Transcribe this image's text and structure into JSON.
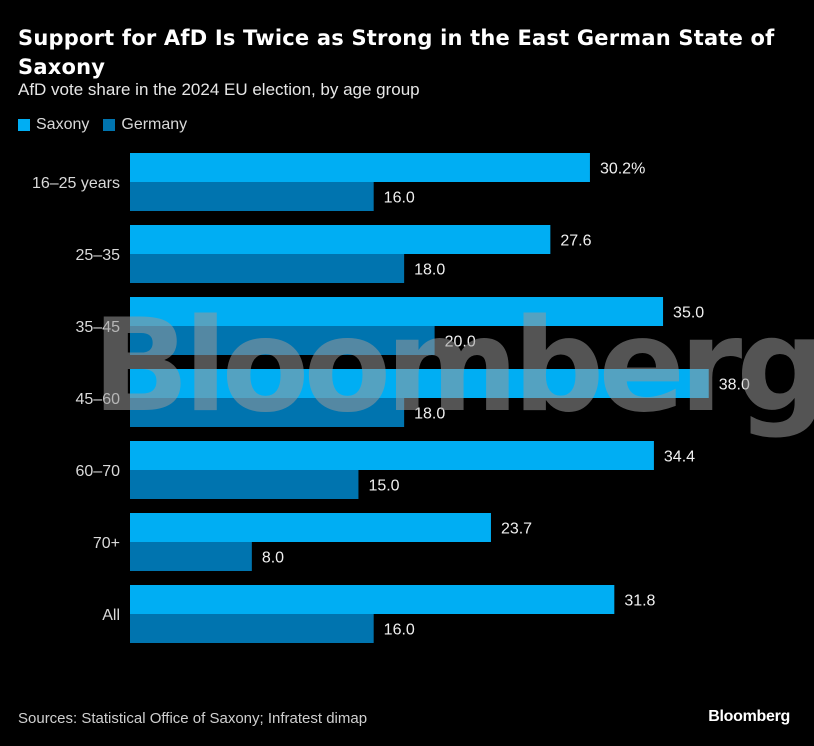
{
  "header": {
    "title": "Support for AfD Is Twice as Strong in the East German State of Saxony",
    "subtitle": "AfD vote share in the 2024 EU election, by age group"
  },
  "legend": [
    {
      "label": "Saxony",
      "color": "#00AEF3"
    },
    {
      "label": "Germany",
      "color": "#0074AF"
    }
  ],
  "footer": {
    "source": "Sources: Statistical Office of Saxony; Infratest dimap",
    "brand": "Bloomberg"
  },
  "watermark": "Bloomberg",
  "chart_data": {
    "type": "bar",
    "orientation": "horizontal",
    "title": "Support for AfD Is Twice as Strong in the East German State of Saxony",
    "subtitle": "AfD vote share in the 2024 EU election, by age group",
    "xlabel": "",
    "ylabel": "",
    "unit": "%",
    "grid": false,
    "legend_position": "top-left",
    "categories": [
      "16–25 years",
      "25–35",
      "35–45",
      "45–60",
      "60–70",
      "70+",
      "All"
    ],
    "series": [
      {
        "name": "Saxony",
        "color": "#00AEF3",
        "values": [
          30.2,
          27.6,
          35.0,
          38.0,
          34.4,
          23.7,
          31.8
        ],
        "labels": [
          "30.2%",
          "27.6",
          "35.0",
          "38.0",
          "34.4",
          "23.7",
          "31.8"
        ]
      },
      {
        "name": "Germany",
        "color": "#0074AF",
        "values": [
          16.0,
          18.0,
          20.0,
          18.0,
          15.0,
          8.0,
          16.0
        ],
        "labels": [
          "16.0",
          "18.0",
          "20.0",
          "18.0",
          "15.0",
          "8.0",
          "16.0"
        ]
      }
    ],
    "xlim": [
      0,
      40
    ]
  }
}
